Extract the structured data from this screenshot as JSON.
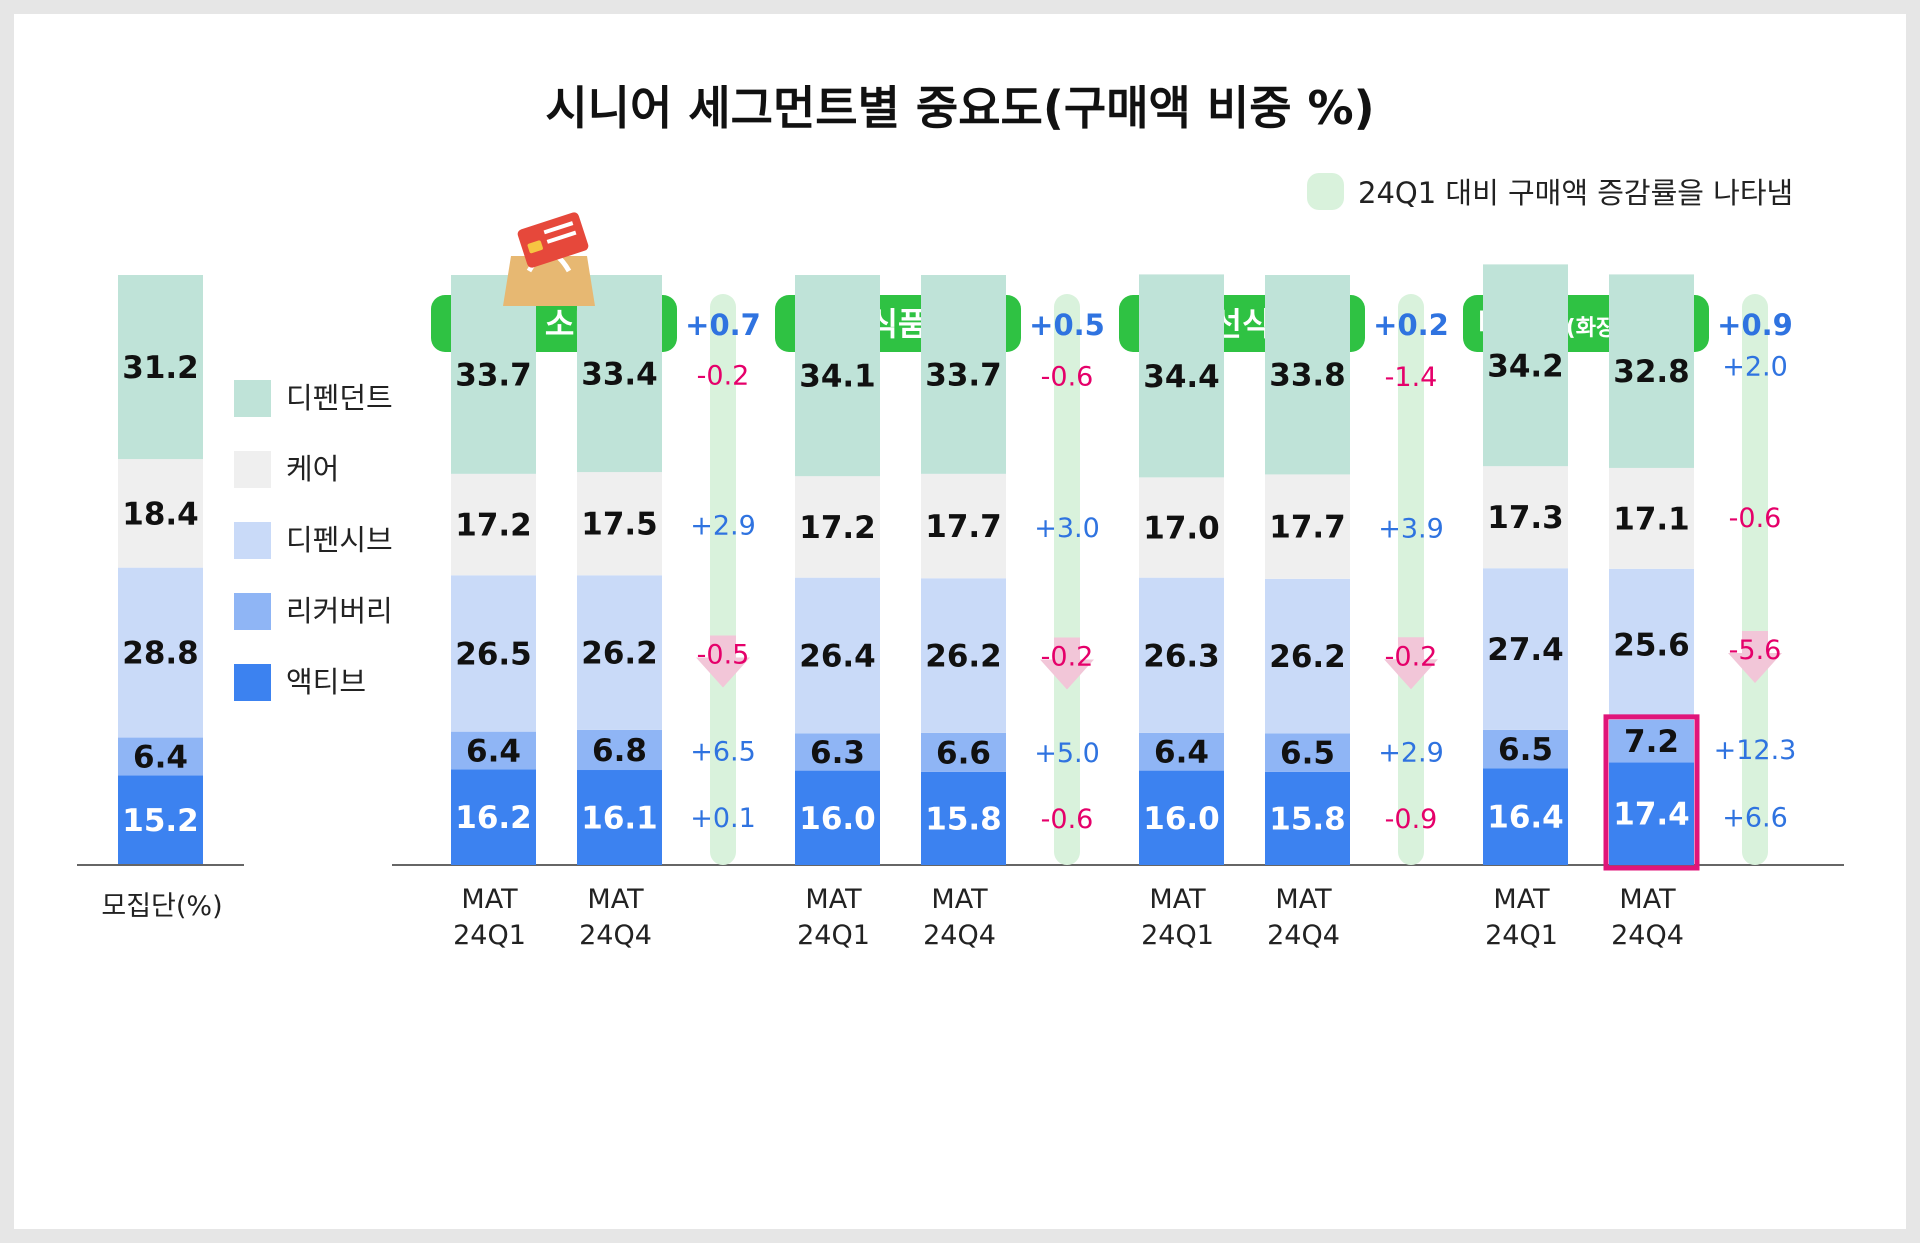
{
  "title": "시니어 세그먼트별 중요도(구매액 비중 %)",
  "note": {
    "text": "24Q1 대비 구매액 증감률을 나타냄",
    "color": "#d9f2dc"
  },
  "colors": {
    "dependent": "#bfe3d8",
    "care": "#efefef",
    "passive": "#c9daf8",
    "recovery": "#8fb5f5",
    "active": "#3c82f0",
    "header": "#2fc243",
    "positive": "#2f73e0",
    "negative": "#e5006a",
    "highlight": "#e0157a",
    "band": "#d9f2dc"
  },
  "legend": [
    {
      "label": "디펜던트",
      "color": "#bfe3d8"
    },
    {
      "label": "케어",
      "color": "#efefef"
    },
    {
      "label": "디펜시브",
      "color": "#c9daf8"
    },
    {
      "label": "리커버리",
      "color": "#8fb5f5"
    },
    {
      "label": "액티브",
      "color": "#3c82f0"
    }
  ],
  "population": {
    "label": "모집단(%)",
    "values": {
      "active": 15.2,
      "recovery": 6.4,
      "passive": 28.8,
      "care": 18.4,
      "dependent": 31.2
    }
  },
  "groups": [
    {
      "name": "전체 소비재",
      "total_change": "+0.7",
      "icon": "shopping-bag-card-icon",
      "bars": [
        {
          "period": [
            "MAT",
            "24Q1"
          ],
          "values": {
            "active": 16.2,
            "recovery": 6.4,
            "passive": 26.5,
            "care": 17.2,
            "dependent": 33.7
          }
        },
        {
          "period": [
            "MAT",
            "24Q4"
          ],
          "values": {
            "active": 16.1,
            "recovery": 6.8,
            "passive": 26.2,
            "care": 17.5,
            "dependent": 33.4
          }
        }
      ],
      "changes": {
        "dependent": "-0.2",
        "care": "+2.9",
        "passive": "-0.5",
        "recovery": "+6.5",
        "active": "+0.1"
      },
      "down_arrow": true
    },
    {
      "name": "식품",
      "total_change": "+0.5",
      "bars": [
        {
          "period": [
            "MAT",
            "24Q1"
          ],
          "values": {
            "active": 16.0,
            "recovery": 6.3,
            "passive": 26.4,
            "care": 17.2,
            "dependent": 34.1
          }
        },
        {
          "period": [
            "MAT",
            "24Q4"
          ],
          "values": {
            "active": 15.8,
            "recovery": 6.6,
            "passive": 26.2,
            "care": 17.7,
            "dependent": 33.7
          }
        }
      ],
      "changes": {
        "dependent": "-0.6",
        "care": "+3.0",
        "passive": "-0.2",
        "recovery": "+5.0",
        "active": "-0.6"
      },
      "down_arrow": true
    },
    {
      "name": "신선식품",
      "total_change": "+0.2",
      "bars": [
        {
          "period": [
            "MAT",
            "24Q1"
          ],
          "values": {
            "active": 16.0,
            "recovery": 6.4,
            "passive": 26.3,
            "care": 17.0,
            "dependent": 34.4
          }
        },
        {
          "period": [
            "MAT",
            "24Q4"
          ],
          "values": {
            "active": 15.8,
            "recovery": 6.5,
            "passive": 26.2,
            "care": 17.7,
            "dependent": 33.8
          }
        }
      ],
      "changes": {
        "dependent": "-1.4",
        "care": "+3.9",
        "passive": "-0.2",
        "recovery": "+2.9",
        "active": "-0.9"
      },
      "down_arrow": true
    },
    {
      "name": "비식품",
      "name_suffix": "(화장품 제외)",
      "total_change": "+0.9",
      "bars": [
        {
          "period": [
            "MAT",
            "24Q1"
          ],
          "values": {
            "active": 16.4,
            "recovery": 6.5,
            "passive": 27.4,
            "care": 17.3,
            "dependent": 34.2
          }
        },
        {
          "period": [
            "MAT",
            "24Q4"
          ],
          "values": {
            "active": 17.4,
            "recovery": 7.2,
            "passive": 25.6,
            "care": 17.1,
            "dependent": 32.8
          },
          "highlight_segments": [
            "active",
            "recovery"
          ]
        }
      ],
      "changes": {
        "dependent": "+2.0",
        "care": "-0.6",
        "passive": "-5.6",
        "recovery": "+12.3",
        "active": "+6.6"
      },
      "down_arrow": true
    }
  ],
  "chart_data": {
    "type": "bar",
    "stacked": true,
    "title": "시니어 세그먼트별 중요도(구매액 비중 %)",
    "unit": "%",
    "categories": [
      "모집단(%)",
      "전체 소비재 MAT 24Q1",
      "전체 소비재 MAT 24Q4",
      "식품 MAT 24Q1",
      "식품 MAT 24Q4",
      "신선식품 MAT 24Q1",
      "신선식품 MAT 24Q4",
      "비식품(화장품 제외) MAT 24Q1",
      "비식품(화장품 제외) MAT 24Q4"
    ],
    "series": [
      {
        "name": "액티브",
        "values": [
          15.2,
          16.2,
          16.1,
          16.0,
          15.8,
          16.0,
          15.8,
          16.4,
          17.4
        ]
      },
      {
        "name": "리커버리",
        "values": [
          6.4,
          6.4,
          6.8,
          6.3,
          6.6,
          6.4,
          6.5,
          6.5,
          7.2
        ]
      },
      {
        "name": "디펜시브",
        "values": [
          28.8,
          26.5,
          26.2,
          26.4,
          26.2,
          26.3,
          26.2,
          27.4,
          25.6
        ]
      },
      {
        "name": "케어",
        "values": [
          18.4,
          17.2,
          17.5,
          17.2,
          17.7,
          17.0,
          17.7,
          17.3,
          17.1
        ]
      },
      {
        "name": "디펜던트",
        "values": [
          31.2,
          33.7,
          33.4,
          34.1,
          33.7,
          34.4,
          33.8,
          34.2,
          32.8
        ]
      }
    ],
    "changes_vs_24Q1": {
      "전체 소비재": {
        "total": "+0.7",
        "디펜던트": "-0.2",
        "케어": "+2.9",
        "디펜시브": "-0.5",
        "리커버리": "+6.5",
        "액티브": "+0.1"
      },
      "식품": {
        "total": "+0.5",
        "디펜던트": "-0.6",
        "케어": "+3.0",
        "디펜시브": "-0.2",
        "리커버리": "+5.0",
        "액티브": "-0.6"
      },
      "신선식품": {
        "total": "+0.2",
        "디펜던트": "-1.4",
        "케어": "+3.9",
        "디펜시브": "-0.2",
        "리커버리": "+2.9",
        "액티브": "-0.9"
      },
      "비식품(화장품 제외)": {
        "total": "+0.9",
        "디펜던트": "+2.0",
        "케어": "-0.6",
        "디펜시브": "-5.6",
        "리커버리": "+12.3",
        "액티브": "+6.6"
      }
    },
    "ylim": [
      0,
      100
    ],
    "legend_position": "left",
    "grid": false
  }
}
